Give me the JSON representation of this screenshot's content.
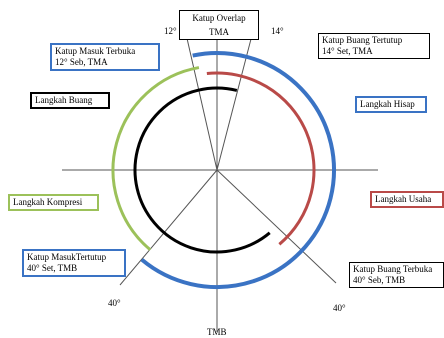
{
  "colors": {
    "intake": "#3a73c4",
    "power": "#b94a48",
    "compression": "#9cc15a",
    "exhaust": "#000000",
    "lines": "#555555"
  },
  "boxes": {
    "overlap": "Katup Overlap",
    "intake_open_title": "Katup Masuk Terbuka",
    "intake_open_detail": "12° Seb, TMA",
    "exhaust_close_title": "Katup Buang Tertutup",
    "exhaust_close_detail": "14° Set, TMA",
    "exhaust_stroke": "Langkah Buang",
    "intake_stroke": "Langkah Hisap",
    "compression_stroke": "Langkah Kompresi",
    "power_stroke": "Langkah Usaha",
    "intake_close_title": "Katup MasukTertutup",
    "intake_close_detail": "40° Set, TMB",
    "exhaust_open_title": "Katup Buang Terbuka",
    "exhaust_open_detail": "40° Seb, TMB"
  },
  "labels": {
    "tma": "TMA",
    "tmb": "TMB",
    "deg_12": "12°",
    "deg_14": "14°",
    "deg_40_left": "40°",
    "deg_40_right": "40°"
  }
}
